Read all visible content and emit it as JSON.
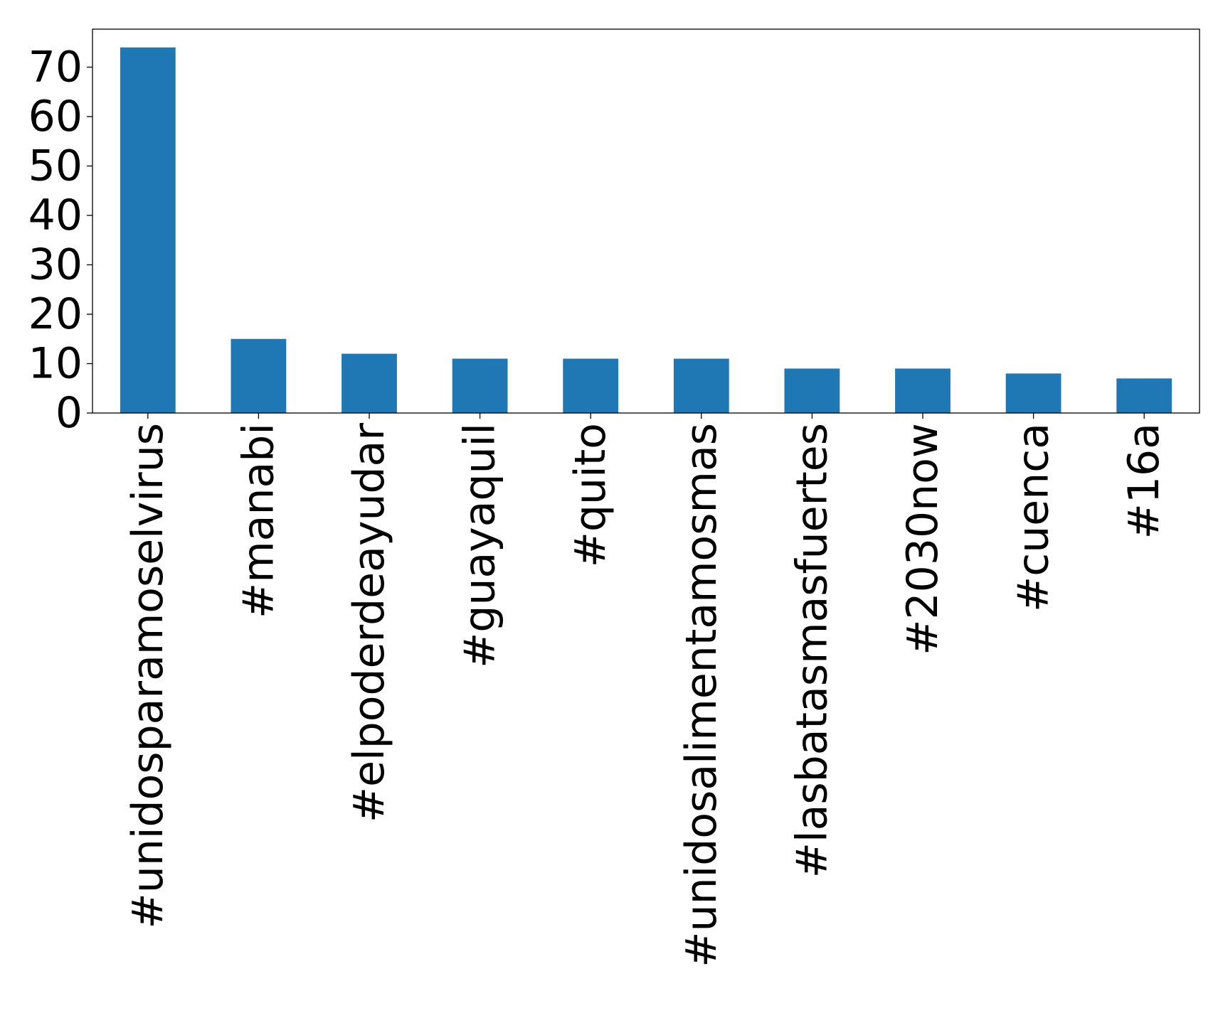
{
  "chart_data": {
    "type": "bar",
    "title": "",
    "xlabel": "",
    "ylabel": "",
    "categories": [
      "#unidosparamoselvirus",
      "#manabi",
      "#elpoderdeayudar",
      "#guayaquil",
      "#quito",
      "#unidosalimentamosmas",
      "#lasbatasmasfuertes",
      "#2030now",
      "#cuenca",
      "#16a"
    ],
    "values": [
      74,
      15,
      12,
      11,
      11,
      11,
      9,
      9,
      8,
      7
    ],
    "ylim": [
      0,
      77.7
    ],
    "yticks": [
      0,
      10,
      20,
      30,
      40,
      50,
      60,
      70
    ],
    "grid": false,
    "bar_color": "#1f77b4"
  }
}
